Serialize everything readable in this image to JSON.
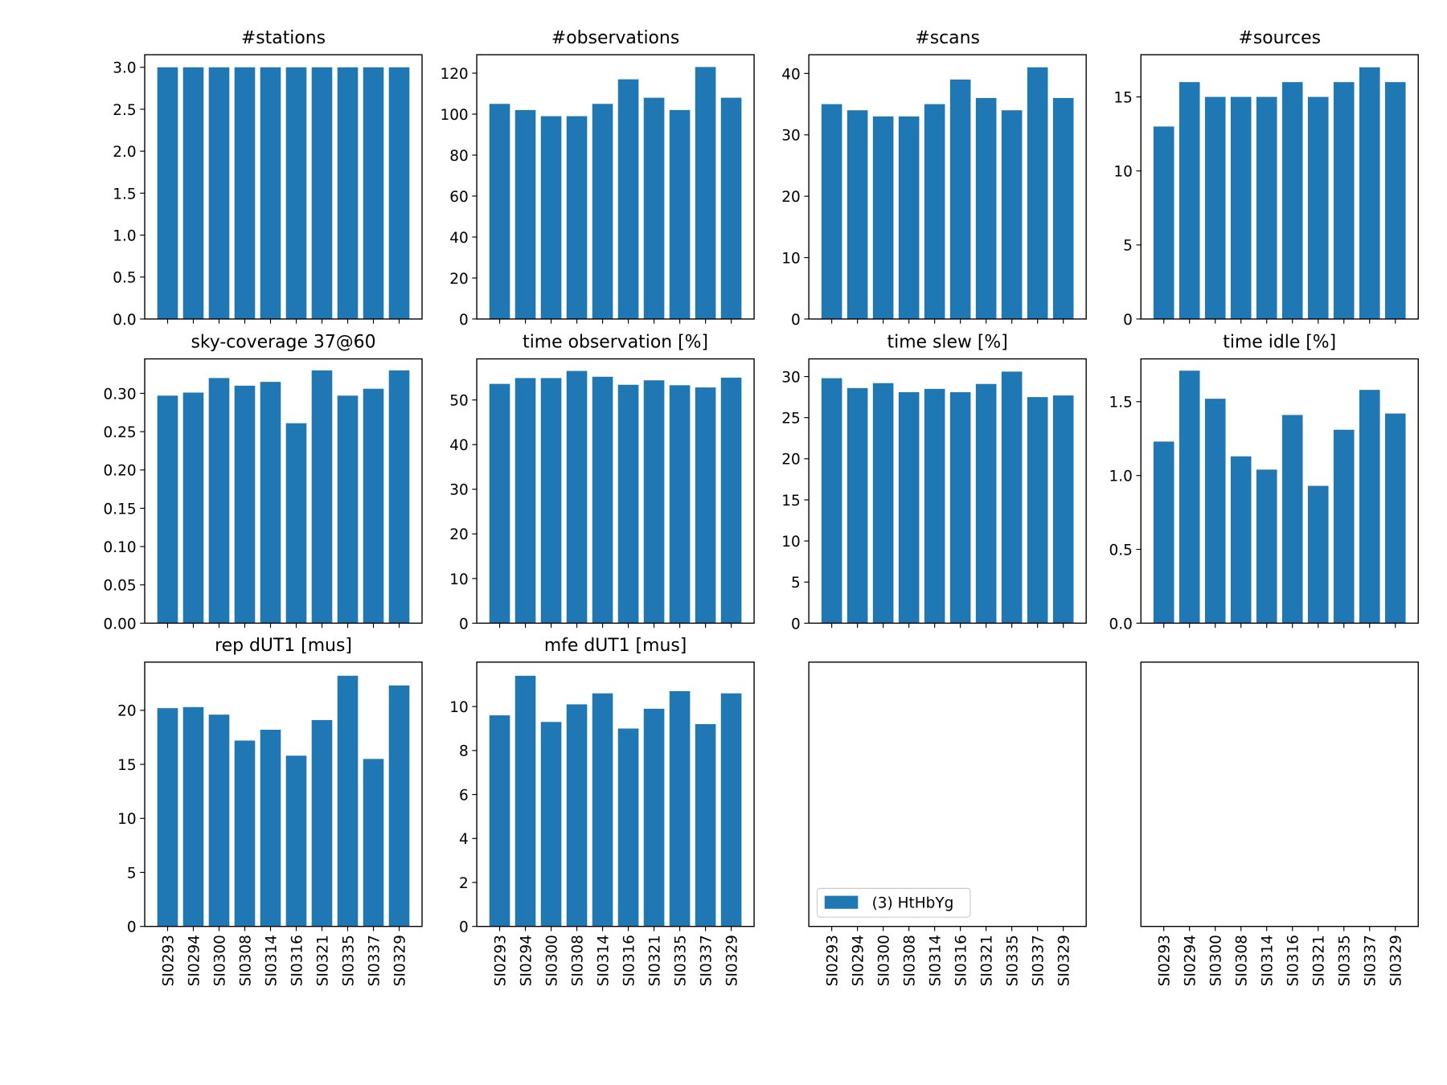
{
  "chart_data": [
    {
      "type": "bar",
      "title": "#stations",
      "color": "#1f77b4",
      "values": [
        3,
        3,
        3,
        3,
        3,
        3,
        3,
        3,
        3,
        3
      ],
      "ylim": [
        0,
        3.15
      ],
      "yticks": [
        {
          "value": 0,
          "label": "0.0"
        },
        0.5,
        {
          "value": 1,
          "label": "1.0"
        },
        1.5,
        {
          "value": 2,
          "label": "2.0"
        },
        2.5,
        {
          "value": 3,
          "label": "3.0"
        }
      ]
    },
    {
      "type": "bar",
      "title": "#observations",
      "color": "#1f77b4",
      "values": [
        105,
        102,
        99,
        99,
        105,
        117,
        108,
        102,
        123,
        108
      ],
      "ylim": [
        0,
        129
      ],
      "yticks": [
        0,
        20,
        40,
        60,
        80,
        100,
        120
      ]
    },
    {
      "type": "bar",
      "title": "#scans",
      "color": "#1f77b4",
      "values": [
        35,
        34,
        33,
        33,
        35,
        39,
        36,
        34,
        41,
        36
      ],
      "ylim": [
        0,
        43.05
      ],
      "yticks": [
        0,
        10,
        20,
        30,
        40
      ]
    },
    {
      "type": "bar",
      "title": "#sources",
      "color": "#1f77b4",
      "values": [
        13,
        16,
        15,
        15,
        15,
        16,
        15,
        16,
        17,
        16
      ],
      "ylim": [
        0,
        17.85
      ],
      "yticks": [
        0,
        5,
        10,
        15
      ]
    },
    {
      "type": "bar",
      "title": "sky-coverage 37@60",
      "color": "#1f77b4",
      "values": [
        0.297,
        0.301,
        0.32,
        0.31,
        0.315,
        0.261,
        0.33,
        0.297,
        0.306,
        0.33
      ],
      "ylim": [
        0,
        0.345
      ],
      "yticks": [
        {
          "value": 0,
          "label": "0.00"
        },
        0.05,
        {
          "value": 0.1,
          "label": "0.10"
        },
        0.15,
        {
          "value": 0.2,
          "label": "0.20"
        },
        0.25,
        {
          "value": 0.3,
          "label": "0.30"
        }
      ]
    },
    {
      "type": "bar",
      "title": "time observation [%]",
      "color": "#1f77b4",
      "values": [
        53.6,
        54.9,
        54.9,
        56.5,
        55.2,
        53.4,
        54.4,
        53.3,
        52.8,
        55.0
      ],
      "ylim": [
        0,
        59.2
      ],
      "yticks": [
        0,
        10,
        20,
        30,
        40,
        50
      ]
    },
    {
      "type": "bar",
      "title": "time slew [%]",
      "color": "#1f77b4",
      "values": [
        29.8,
        28.6,
        29.2,
        28.1,
        28.5,
        28.1,
        29.1,
        30.6,
        27.5,
        27.7
      ],
      "ylim": [
        0,
        32.15
      ],
      "yticks": [
        0,
        5,
        10,
        15,
        20,
        25,
        30
      ]
    },
    {
      "type": "bar",
      "title": "time idle [%]",
      "color": "#1f77b4",
      "values": [
        1.23,
        1.71,
        1.52,
        1.13,
        1.04,
        1.41,
        0.93,
        1.31,
        1.58,
        1.42
      ],
      "ylim": [
        0,
        1.79
      ],
      "yticks": [
        {
          "value": 0,
          "label": "0.0"
        },
        0.5,
        {
          "value": 1,
          "label": "1.0"
        },
        1.5
      ]
    },
    {
      "type": "bar",
      "title": "rep dUT1 [mus]",
      "color": "#1f77b4",
      "categories": [
        "SI0293",
        "SI0294",
        "SI0300",
        "SI0308",
        "SI0314",
        "SI0316",
        "SI0321",
        "SI0335",
        "SI0337",
        "SI0329"
      ],
      "values": [
        20.2,
        20.3,
        19.6,
        17.2,
        18.2,
        15.8,
        19.1,
        23.2,
        15.5,
        22.3
      ],
      "ylim": [
        0,
        24.46
      ],
      "yticks": [
        0,
        5,
        10,
        15,
        20
      ]
    },
    {
      "type": "bar",
      "title": "mfe dUT1 [mus]",
      "color": "#1f77b4",
      "categories": [
        "SI0293",
        "SI0294",
        "SI0300",
        "SI0308",
        "SI0314",
        "SI0316",
        "SI0321",
        "SI0335",
        "SI0337",
        "SI0329"
      ],
      "values": [
        9.6,
        11.4,
        9.3,
        10.1,
        10.6,
        9.0,
        9.9,
        10.7,
        9.2,
        10.6
      ],
      "ylim": [
        0,
        12.02
      ],
      "yticks": [
        0,
        2,
        4,
        6,
        8,
        10
      ]
    },
    {
      "type": "bar",
      "categories": [
        "SI0293",
        "SI0294",
        "SI0300",
        "SI0308",
        "SI0314",
        "SI0316",
        "SI0321",
        "SI0335",
        "SI0337",
        "SI0329"
      ],
      "legend": {
        "label": "(3) HtHbYg",
        "color": "#1f77b4",
        "loc": "lower left"
      }
    },
    {
      "type": "bar",
      "categories": [
        "SI0293",
        "SI0294",
        "SI0300",
        "SI0308",
        "SI0314",
        "SI0316",
        "SI0321",
        "SI0335",
        "SI0337",
        "SI0329"
      ]
    }
  ]
}
